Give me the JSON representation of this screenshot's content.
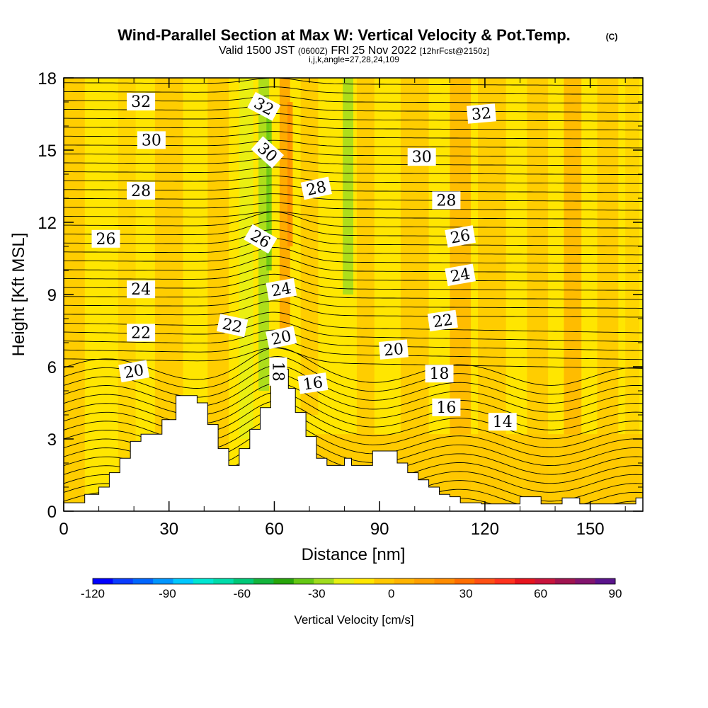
{
  "title": {
    "main": "Wind-Parallel Section at Max W: Vertical Velocity & Pot.Temp.",
    "copyright": "(C)",
    "valid_prefix": "Valid 1500 JST",
    "valid_utc": "(0600Z)",
    "valid_date": "FRI 25 Nov 2022",
    "forecast": "[12hrFcst@2150z]",
    "meta": "i,j,k,angle=27,28,24,109"
  },
  "chart_data": {
    "type": "contour",
    "title": "Wind-Parallel Section at Max W: Vertical Velocity & Pot.Temp.",
    "xlabel": "Distance [nm]",
    "ylabel": "Height [Kft MSL]",
    "xlim": [
      0,
      165
    ],
    "ylim": [
      0,
      18
    ],
    "xticks": [
      0,
      30,
      60,
      90,
      120,
      150
    ],
    "yticks": [
      0,
      3,
      6,
      9,
      12,
      15,
      18
    ],
    "fill_variable": "Vertical Velocity [cm/s]",
    "contour_variable": "Potential Temperature",
    "colorbar": {
      "label": "Vertical Velocity [cm/s]",
      "ticks": [
        -120,
        -90,
        -60,
        -30,
        0,
        30,
        60,
        90
      ],
      "colors": [
        "#0000ff",
        "#0a3cff",
        "#0066ff",
        "#0096ff",
        "#00c8ff",
        "#00e6d2",
        "#00dcaa",
        "#00c878",
        "#14b43c",
        "#28a50a",
        "#64c814",
        "#a0dc1e",
        "#e6f014",
        "#ffe600",
        "#ffc800",
        "#ffb400",
        "#ffa000",
        "#ff8c00",
        "#ff6e00",
        "#ff5014",
        "#ff321e",
        "#e6141e",
        "#c8143c",
        "#a01450",
        "#82146e",
        "#5a148c"
      ]
    },
    "contour_labels": [
      {
        "value": 32,
        "x": 22,
        "y": 17.0,
        "angle": 0
      },
      {
        "value": 32,
        "x": 57,
        "y": 16.8,
        "angle": 28
      },
      {
        "value": 32,
        "x": 119,
        "y": 16.5,
        "angle": -5
      },
      {
        "value": 30,
        "x": 25,
        "y": 15.4,
        "angle": 0
      },
      {
        "value": 30,
        "x": 58,
        "y": 14.9,
        "angle": 42
      },
      {
        "value": 30,
        "x": 102,
        "y": 14.7,
        "angle": 0
      },
      {
        "value": 28,
        "x": 22,
        "y": 13.3,
        "angle": 0
      },
      {
        "value": 28,
        "x": 72,
        "y": 13.4,
        "angle": -12
      },
      {
        "value": 28,
        "x": 109,
        "y": 12.9,
        "angle": 0
      },
      {
        "value": 26,
        "x": 12,
        "y": 11.3,
        "angle": 0
      },
      {
        "value": 26,
        "x": 56,
        "y": 11.3,
        "angle": 30
      },
      {
        "value": 26,
        "x": 113,
        "y": 11.4,
        "angle": -10
      },
      {
        "value": 24,
        "x": 22,
        "y": 9.2,
        "angle": 0
      },
      {
        "value": 24,
        "x": 62,
        "y": 9.2,
        "angle": -10
      },
      {
        "value": 24,
        "x": 113,
        "y": 9.8,
        "angle": -10
      },
      {
        "value": 22,
        "x": 22,
        "y": 7.4,
        "angle": 0
      },
      {
        "value": 22,
        "x": 48,
        "y": 7.7,
        "angle": 12
      },
      {
        "value": 22,
        "x": 108,
        "y": 7.9,
        "angle": -8
      },
      {
        "value": 20,
        "x": 20,
        "y": 5.8,
        "angle": -10
      },
      {
        "value": 20,
        "x": 62,
        "y": 7.2,
        "angle": -12
      },
      {
        "value": 20,
        "x": 94,
        "y": 6.7,
        "angle": -5
      },
      {
        "value": 18,
        "x": 61,
        "y": 5.8,
        "angle": 90
      },
      {
        "value": 18,
        "x": 107,
        "y": 5.7,
        "angle": 0
      },
      {
        "value": 16,
        "x": 71,
        "y": 5.3,
        "angle": -8
      },
      {
        "value": 16,
        "x": 109,
        "y": 4.3,
        "angle": 0
      },
      {
        "value": 14,
        "x": 125,
        "y": 3.7,
        "angle": 0
      }
    ],
    "terrain": [
      [
        0,
        0.35
      ],
      [
        6,
        0.35
      ],
      [
        6,
        0.7
      ],
      [
        10,
        0.7
      ],
      [
        10,
        1.0
      ],
      [
        13,
        1.0
      ],
      [
        13,
        1.6
      ],
      [
        16,
        1.6
      ],
      [
        16,
        2.2
      ],
      [
        19,
        2.2
      ],
      [
        19,
        2.9
      ],
      [
        22,
        2.9
      ],
      [
        22,
        3.2
      ],
      [
        28,
        3.2
      ],
      [
        28,
        3.8
      ],
      [
        32,
        3.8
      ],
      [
        32,
        4.8
      ],
      [
        38,
        4.8
      ],
      [
        38,
        4.5
      ],
      [
        41,
        4.5
      ],
      [
        41,
        3.6
      ],
      [
        44,
        3.6
      ],
      [
        44,
        2.6
      ],
      [
        47,
        2.6
      ],
      [
        47,
        1.9
      ],
      [
        50,
        1.9
      ],
      [
        50,
        2.6
      ],
      [
        53,
        2.6
      ],
      [
        53,
        3.4
      ],
      [
        56,
        3.4
      ],
      [
        56,
        4.3
      ],
      [
        59,
        4.3
      ],
      [
        59,
        5.9
      ],
      [
        64,
        5.9
      ],
      [
        64,
        5.1
      ],
      [
        66,
        5.1
      ],
      [
        66,
        4.1
      ],
      [
        69,
        4.1
      ],
      [
        69,
        3.1
      ],
      [
        72,
        3.1
      ],
      [
        72,
        2.2
      ],
      [
        75,
        2.2
      ],
      [
        75,
        1.9
      ],
      [
        80,
        1.9
      ],
      [
        80,
        2.2
      ],
      [
        82,
        2.2
      ],
      [
        82,
        1.9
      ],
      [
        88,
        1.9
      ],
      [
        88,
        2.5
      ],
      [
        95,
        2.5
      ],
      [
        95,
        2.0
      ],
      [
        98,
        2.0
      ],
      [
        98,
        1.6
      ],
      [
        101,
        1.6
      ],
      [
        101,
        1.3
      ],
      [
        104,
        1.3
      ],
      [
        104,
        1.0
      ],
      [
        107,
        1.0
      ],
      [
        107,
        0.7
      ],
      [
        110,
        0.7
      ],
      [
        110,
        0.6
      ],
      [
        113,
        0.6
      ],
      [
        113,
        0.35
      ],
      [
        119,
        0.35
      ],
      [
        119,
        0.3
      ],
      [
        130,
        0.3
      ],
      [
        130,
        0.6
      ],
      [
        136,
        0.6
      ],
      [
        136,
        0.3
      ],
      [
        142,
        0.3
      ],
      [
        142,
        0.55
      ],
      [
        147,
        0.55
      ],
      [
        147,
        0.3
      ],
      [
        150,
        0.3
      ],
      [
        150,
        0.3
      ],
      [
        155,
        0.3
      ],
      [
        155,
        0.3
      ],
      [
        163,
        0.3
      ],
      [
        163,
        0.55
      ],
      [
        165,
        0.55
      ]
    ],
    "theta_levels_top": [
      32.8,
      32.4,
      32.0,
      31.6,
      31.2,
      30.8,
      30.4,
      30.0,
      29.6,
      29.2,
      28.8,
      28.4,
      28.0,
      27.6,
      27.2,
      26.8,
      26.4,
      26.0,
      25.6,
      25.2,
      24.8,
      24.4,
      24.0,
      23.6,
      23.2,
      22.8,
      22.4,
      22.0,
      21.6,
      21.2,
      20.8,
      20.4,
      20.0,
      19.6,
      19.2,
      18.8,
      18.4,
      18.0,
      17.6,
      17.2,
      16.8,
      16.4,
      16.0,
      15.6,
      15.2,
      14.8,
      14.4,
      14.0
    ]
  }
}
